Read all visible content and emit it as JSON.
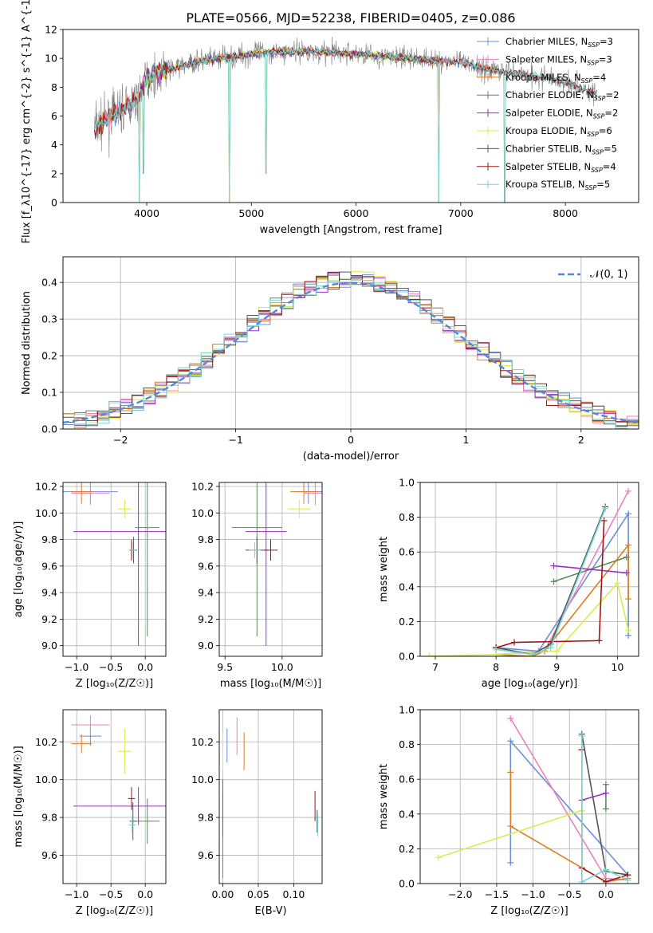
{
  "title": "PLATE=0566, MJD=52238, FIBERID=0405, z=0.086",
  "colors": {
    "chab_miles": "#6a8fd8",
    "salp_miles": "#ef7fbd",
    "krou_miles": "#e07b1f",
    "chab_elodie": "#5a8a5a",
    "salp_elodie": "#9b30c7",
    "krou_elodie": "#d9ec4a",
    "chab_stelib": "#555555",
    "salp_stelib": "#a11414",
    "krou_stelib": "#76d6d6",
    "spectrum": "#7f7f7f",
    "normal": "#5588dd"
  },
  "chart_data": [
    {
      "id": "spectrum",
      "type": "line",
      "xlabel": "wavelength [Angstrom, rest frame]",
      "ylabel": "Flux [f_λ10^{-17} erg cm^{-2} s^{-1} A^{-1}]",
      "xlim": [
        3200,
        8700
      ],
      "ylim": [
        0,
        12
      ],
      "xticks": [
        "4000",
        "5000",
        "6000",
        "7000",
        "8000"
      ],
      "yticks": [
        "0",
        "2",
        "4",
        "6",
        "8",
        "10",
        "12"
      ],
      "grid": false,
      "legend_position": "right",
      "legend": [
        {
          "label": "Chabrier MILES, N",
          "n": "3",
          "color_key": "chab_miles"
        },
        {
          "label": "Salpeter MILES, N",
          "n": "3",
          "color_key": "salp_miles"
        },
        {
          "label": "Kroupa MILES, N",
          "n": "4",
          "color_key": "krou_miles"
        },
        {
          "label": "Chabrier ELODIE, N",
          "n": "2",
          "color_key": "chab_elodie"
        },
        {
          "label": "Salpeter ELODIE, N",
          "n": "2",
          "color_key": "salp_elodie"
        },
        {
          "label": "Kroupa ELODIE, N",
          "n": "6",
          "color_key": "krou_elodie"
        },
        {
          "label": "Chabrier STELIB, N",
          "n": "5",
          "color_key": "chab_stelib"
        },
        {
          "label": "Salpeter STELIB, N",
          "n": "4",
          "color_key": "salp_stelib"
        },
        {
          "label": "Kroupa STELIB, N",
          "n": "5",
          "color_key": "krou_stelib"
        }
      ],
      "continuum": {
        "x": [
          3500,
          3700,
          3900,
          4000,
          4100,
          4300,
          4500,
          4800,
          5100,
          5500,
          6000,
          6500,
          7000,
          7300,
          7600,
          8000,
          8300
        ],
        "y": [
          5.2,
          6.2,
          7.0,
          8.6,
          9.0,
          9.4,
          9.8,
          10.1,
          10.4,
          10.5,
          10.3,
          10.0,
          9.7,
          9.2,
          8.9,
          8.4,
          7.5
        ]
      },
      "dips": [
        {
          "x": 3930,
          "y": 0.0
        },
        {
          "x": 3968,
          "y": 2.0
        },
        {
          "x": 4790,
          "y": 0.0
        },
        {
          "x": 5140,
          "y": 2.0
        },
        {
          "x": 6790,
          "y": 0.0
        },
        {
          "x": 7420,
          "y": 0.0
        }
      ]
    },
    {
      "id": "residuals",
      "type": "histogram",
      "xlabel": "(data-model)/error",
      "ylabel": "Normed distribution",
      "xlim": [
        -2.5,
        2.5
      ],
      "ylim": [
        0,
        0.47
      ],
      "xticks": [
        "−2",
        "−1",
        "0",
        "1",
        "2"
      ],
      "yticks": [
        "0.0",
        "0.1",
        "0.2",
        "0.3",
        "0.4"
      ],
      "grid": true,
      "legend_position": "upper right",
      "legend_label": "𝒩(0, 1)",
      "bin_width": 0.1
    },
    {
      "id": "age_vs_Z",
      "type": "errorbar",
      "xlabel": "Z [log₁₀(Z/Z☉)]",
      "ylabel": "age  [log₁₀(age/yr)]",
      "xlim": [
        -1.2,
        0.3
      ],
      "ylim": [
        8.92,
        10.23
      ],
      "xticks": [
        "−1.0",
        "−0.5",
        "0.0"
      ],
      "yticks": [
        "9.0",
        "9.2",
        "9.4",
        "9.6",
        "9.8",
        "10.0",
        "10.2"
      ],
      "points": [
        {
          "c": "chab_miles",
          "x": -0.8,
          "xe": 0.4,
          "y": 10.16,
          "ye": 0.09
        },
        {
          "c": "salp_miles",
          "x": -0.8,
          "xe": 0.28,
          "y": 10.15,
          "ye": 0.09
        },
        {
          "c": "krou_miles",
          "x": -0.93,
          "xe": 0.15,
          "y": 10.16,
          "ye": 0.09
        },
        {
          "c": "chab_elodie",
          "x": 0.03,
          "xe": 0.18,
          "y": 9.89,
          "ye": 0.82
        },
        {
          "c": "salp_elodie",
          "x": -0.1,
          "xe": 0.95,
          "y": 9.86,
          "ye": 0.86
        },
        {
          "c": "krou_elodie",
          "x": -0.3,
          "xe": 0.1,
          "y": 10.03,
          "ye": 0.07
        },
        {
          "c": "chab_stelib",
          "x": -0.17,
          "xe": 0.05,
          "y": 9.72,
          "ye": 0.1
        },
        {
          "c": "salp_stelib",
          "x": -0.2,
          "xe": 0.04,
          "y": 9.72,
          "ye": 0.08
        },
        {
          "c": "krou_stelib",
          "x": -0.19,
          "xe": 0.05,
          "y": 9.72,
          "ye": 0.06
        }
      ]
    },
    {
      "id": "age_vs_mass",
      "type": "errorbar",
      "xlabel": "mass [log₁₀(M/M☉)]",
      "ylabel": "",
      "xlim": [
        9.45,
        10.35
      ],
      "ylim": [
        8.92,
        10.23
      ],
      "xticks": [
        "9.5",
        "10.0"
      ],
      "yticks": [
        "9.0",
        "9.2",
        "9.4",
        "9.6",
        "9.8",
        "10.0",
        "10.2"
      ],
      "points": [
        {
          "c": "chab_miles",
          "x": 10.23,
          "xe": 0.12,
          "y": 10.16,
          "ye": 0.09
        },
        {
          "c": "salp_miles",
          "x": 10.29,
          "xe": 0.1,
          "y": 10.15,
          "ye": 0.09
        },
        {
          "c": "krou_miles",
          "x": 10.19,
          "xe": 0.12,
          "y": 10.16,
          "ye": 0.09
        },
        {
          "c": "chab_elodie",
          "x": 9.78,
          "xe": 0.22,
          "y": 9.89,
          "ye": 0.82
        },
        {
          "c": "salp_elodie",
          "x": 9.86,
          "xe": 0.18,
          "y": 9.86,
          "ye": 0.86
        },
        {
          "c": "krou_elodie",
          "x": 10.15,
          "xe": 0.1,
          "y": 10.03,
          "ye": 0.07
        },
        {
          "c": "chab_stelib",
          "x": 9.78,
          "xe": 0.1,
          "y": 9.72,
          "ye": 0.1
        },
        {
          "c": "salp_stelib",
          "x": 9.9,
          "xe": 0.06,
          "y": 9.72,
          "ye": 0.08
        },
        {
          "c": "krou_stelib",
          "x": 9.76,
          "xe": 0.05,
          "y": 9.72,
          "ye": 0.06
        }
      ]
    },
    {
      "id": "weight_vs_age",
      "type": "line",
      "xlabel": "age  [log₁₀(age/yr)]",
      "ylabel": "mass weight",
      "xlim": [
        6.75,
        10.35
      ],
      "ylim": [
        0,
        1
      ],
      "xticks": [
        "7",
        "8",
        "9",
        "10"
      ],
      "yticks": [
        "0.0",
        "0.2",
        "0.4",
        "0.6",
        "0.8",
        "1.0"
      ],
      "series": [
        {
          "c": "chab_miles",
          "x": [
            8.0,
            8.7,
            10.18,
            10.18
          ],
          "y": [
            0.05,
            0.03,
            0.82,
            0.12
          ]
        },
        {
          "c": "salp_miles",
          "x": [
            8.0,
            8.8,
            10.18
          ],
          "y": [
            0.01,
            0.03,
            0.95
          ]
        },
        {
          "c": "krou_miles",
          "x": [
            8.0,
            8.6,
            8.8,
            10.18,
            10.18
          ],
          "y": [
            0.01,
            0.0,
            0.03,
            0.64,
            0.33
          ]
        },
        {
          "c": "chab_elodie",
          "x": [
            8.95,
            10.15
          ],
          "y": [
            0.43,
            0.57
          ]
        },
        {
          "c": "salp_elodie",
          "x": [
            8.95,
            10.15
          ],
          "y": [
            0.52,
            0.48
          ]
        },
        {
          "c": "krou_elodie",
          "x": [
            6.9,
            8.0,
            9.0,
            10.0,
            10.18
          ],
          "y": [
            0.0,
            0.01,
            0.03,
            0.42,
            0.15
          ]
        },
        {
          "c": "chab_stelib",
          "x": [
            8.0,
            8.6,
            8.9,
            9.8
          ],
          "y": [
            0.05,
            0.01,
            0.07,
            0.86
          ]
        },
        {
          "c": "salp_stelib",
          "x": [
            8.0,
            8.3,
            9.7,
            9.78
          ],
          "y": [
            0.05,
            0.08,
            0.09,
            0.78
          ]
        },
        {
          "c": "krou_stelib",
          "x": [
            8.0,
            8.6,
            8.9,
            9.8
          ],
          "y": [
            0.04,
            0.01,
            0.05,
            0.85
          ]
        }
      ]
    },
    {
      "id": "mass_vs_Z",
      "type": "errorbar",
      "xlabel": "Z [log₁₀(Z/Z☉)]",
      "ylabel": "mass [log₁₀(M/M☉)]",
      "xlim": [
        -1.2,
        0.3
      ],
      "ylim": [
        9.45,
        10.37
      ],
      "xticks": [
        "−1.0",
        "−0.5",
        "0.0"
      ],
      "yticks": [
        "9.6",
        "9.8",
        "10.0",
        "10.2"
      ],
      "points": [
        {
          "c": "chab_miles",
          "x": -0.8,
          "xe": 0.16,
          "y": 10.23,
          "ye": 0.05
        },
        {
          "c": "salp_miles",
          "x": -0.8,
          "xe": 0.28,
          "y": 10.29,
          "ye": 0.05
        },
        {
          "c": "krou_miles",
          "x": -0.93,
          "xe": 0.15,
          "y": 10.19,
          "ye": 0.05
        },
        {
          "c": "chab_elodie",
          "x": 0.03,
          "xe": 0.18,
          "y": 9.78,
          "ye": 0.12
        },
        {
          "c": "salp_elodie",
          "x": -0.1,
          "xe": 0.95,
          "y": 9.86,
          "ye": 0.1
        },
        {
          "c": "krou_elodie",
          "x": -0.3,
          "xe": 0.1,
          "y": 10.15,
          "ye": 0.12
        },
        {
          "c": "chab_stelib",
          "x": -0.18,
          "xe": 0.05,
          "y": 9.78,
          "ye": 0.1
        },
        {
          "c": "salp_stelib",
          "x": -0.2,
          "xe": 0.05,
          "y": 9.9,
          "ye": 0.06
        },
        {
          "c": "krou_stelib",
          "x": -0.19,
          "xe": 0.05,
          "y": 9.76,
          "ye": 0.05
        }
      ]
    },
    {
      "id": "mass_vs_ebv",
      "type": "errorbar",
      "xlabel": "E(B-V)",
      "ylabel": "",
      "xlim": [
        -0.005,
        0.14
      ],
      "ylim": [
        9.45,
        10.37
      ],
      "xticks": [
        "0.00",
        "0.05",
        "0.10"
      ],
      "yticks": [
        "9.6",
        "9.8",
        "10.0",
        "10.2"
      ],
      "points": [
        {
          "c": "chab_miles",
          "x": 0.006,
          "xe": 0,
          "y": 10.18,
          "ye": 0.09
        },
        {
          "c": "salp_miles",
          "x": 0.02,
          "xe": 0,
          "y": 10.23,
          "ye": 0.1
        },
        {
          "c": "krou_miles",
          "x": 0.03,
          "xe": 0,
          "y": 10.15,
          "ye": 0.1
        },
        {
          "c": "chab_elodie",
          "x": 0.0,
          "xe": 0,
          "y": 9.7,
          "ye": 0.22
        },
        {
          "c": "salp_elodie",
          "x": 0.0,
          "xe": 0,
          "y": 9.85,
          "ye": 0.15
        },
        {
          "c": "krou_elodie",
          "x": 0.0,
          "xe": 0,
          "y": 10.15,
          "ye": 0.1
        },
        {
          "c": "chab_stelib",
          "x": 0.133,
          "xe": 0,
          "y": 9.78,
          "ye": 0.06
        },
        {
          "c": "salp_stelib",
          "x": 0.13,
          "xe": 0,
          "y": 9.86,
          "ye": 0.08
        },
        {
          "c": "krou_stelib",
          "x": 0.134,
          "xe": 0,
          "y": 9.76,
          "ye": 0.06
        }
      ]
    },
    {
      "id": "weight_vs_Z",
      "type": "line",
      "xlabel": "Z [log₁₀(Z/Z☉)]",
      "ylabel": "mass weight",
      "xlim": [
        -2.55,
        0.45
      ],
      "ylim": [
        0,
        1
      ],
      "xticks": [
        "−2.0",
        "−1.5",
        "−1.0",
        "−0.5",
        "0.0"
      ],
      "yticks": [
        "0.0",
        "0.2",
        "0.4",
        "0.6",
        "0.8",
        "1.0"
      ],
      "series": [
        {
          "c": "chab_miles",
          "x": [
            -1.31,
            -1.31,
            0.3
          ],
          "y": [
            0.12,
            0.82,
            0.05
          ]
        },
        {
          "c": "salp_miles",
          "x": [
            -1.31,
            -0.0,
            0.3
          ],
          "y": [
            0.95,
            0.03,
            0.02
          ]
        },
        {
          "c": "krou_miles",
          "x": [
            -1.31,
            -1.31,
            -0.0,
            0.3
          ],
          "y": [
            0.64,
            0.33,
            0.01,
            0.03
          ]
        },
        {
          "c": "chab_elodie",
          "x": [
            -0.0,
            -0.0
          ],
          "y": [
            0.43,
            0.57
          ]
        },
        {
          "c": "salp_elodie",
          "x": [
            -0.33,
            -0.0
          ],
          "y": [
            0.48,
            0.52
          ]
        },
        {
          "c": "krou_elodie",
          "x": [
            -2.3,
            -0.33,
            -0.33
          ],
          "y": [
            0.15,
            0.42,
            0.0
          ]
        },
        {
          "c": "chab_stelib",
          "x": [
            -0.33,
            -0.33,
            -0.0,
            0.3
          ],
          "y": [
            0.77,
            0.86,
            0.07,
            0.05
          ]
        },
        {
          "c": "salp_stelib",
          "x": [
            -0.33,
            -0.33,
            0.0,
            0.3
          ],
          "y": [
            0.77,
            0.09,
            0.01,
            0.05
          ]
        },
        {
          "c": "krou_stelib",
          "x": [
            -0.33,
            -0.33,
            -0.0,
            0.3
          ],
          "y": [
            0.85,
            0.01,
            0.08,
            0.02
          ]
        }
      ]
    }
  ]
}
